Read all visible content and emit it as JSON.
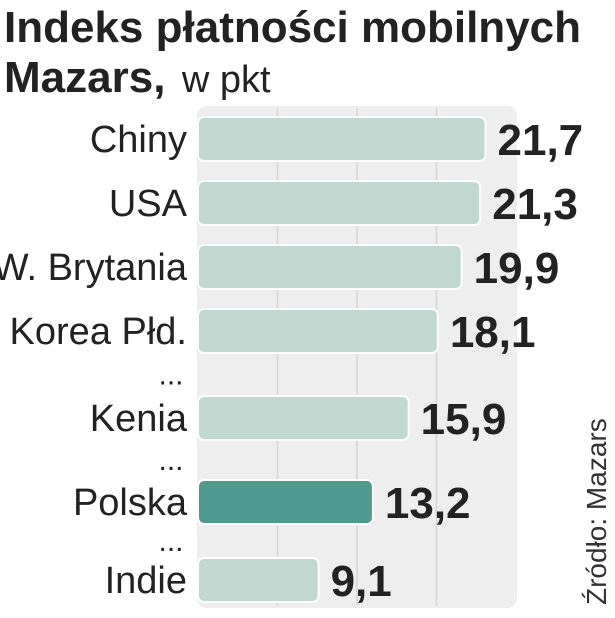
{
  "chart_data": {
    "type": "bar",
    "orientation": "horizontal",
    "title": "Indeks płatności mobilnych",
    "title_line2": "Mazars,",
    "subtitle": "w pkt",
    "categories": [
      "Chiny",
      "USA",
      "W. Brytania",
      "Korea Płd.",
      "Kenia",
      "Polska",
      "Indie"
    ],
    "values": [
      21.7,
      21.3,
      19.9,
      18.1,
      15.9,
      13.2,
      9.1
    ],
    "value_labels": [
      "21,7",
      "21,3",
      "19,9",
      "18,1",
      "15,9",
      "13,2",
      "9,1"
    ],
    "ellipsis_text": "...",
    "ellipsis_after": [
      3,
      4,
      5
    ],
    "highlight_category": "Polska",
    "xlim": [
      0,
      24
    ],
    "grid": true,
    "source": "Źródło: Mazars",
    "colors": {
      "bar": "#bfd9d1",
      "bar_highlight": "#4e9a8e",
      "bar_stroke": "#ffffff",
      "panel": "#eeeeee",
      "grid": "#d4d4d4",
      "text": "#222222"
    }
  }
}
